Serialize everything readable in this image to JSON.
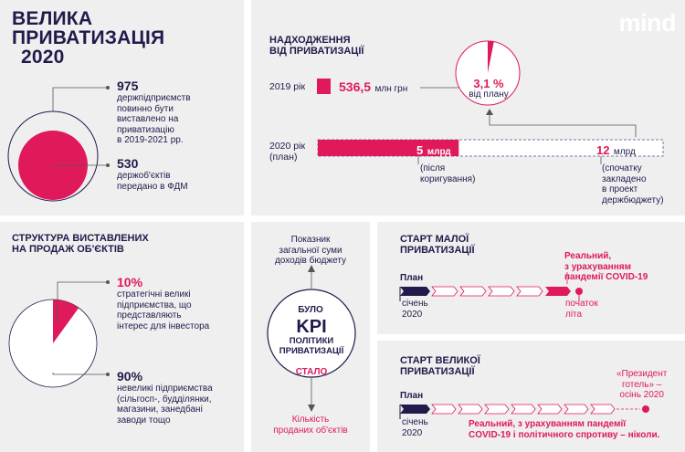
{
  "logo": "mind",
  "colors": {
    "accent": "#e0195a",
    "navy": "#221a4b",
    "panel": "#efefef",
    "dark": "#2e2e3a"
  },
  "title": {
    "line1": "ВЕЛИКА",
    "line2": "ПРИВАТИЗАЦІЯ",
    "line3": "2020"
  },
  "enterprises": {
    "total_value": "975",
    "total_text": [
      "держпідприємств",
      "повинно бути",
      "виставлено на",
      "приватизацію",
      "в 2019-2021 рр."
    ],
    "transferred_value": "530",
    "transferred_text": [
      "держоб'єктів",
      "передано в ФДМ"
    ]
  },
  "revenue": {
    "title_line1": "НАДХОДЖЕННЯ",
    "title_line2": "ВІД ПРИВАТИЗАЦІЇ",
    "y2019_label": "2019 рік",
    "y2019_value": "536,5",
    "y2019_unit": "млн грн",
    "pie_percent_value": 3.1,
    "pie_percent": "3,1 %",
    "pie_caption": "від плану",
    "y2020_label_line1": "2020 рік",
    "y2020_label_line2": "(план)",
    "adjusted_value": "5",
    "adjusted_unit": "млрд",
    "adjusted_note": [
      "(після",
      "коригування)"
    ],
    "original_value": "12",
    "original_unit": "млрд",
    "original_note": [
      "(спочатку",
      "закладено",
      "в проект",
      "держбюджету)"
    ]
  },
  "structure": {
    "title_line1": "СТРУКТУРА ВИСТАВЛЕНИХ",
    "title_line2": "НА ПРОДАЖ ОБ'ЄКТІВ",
    "pie_share": 10,
    "strategic_value": "10%",
    "strategic_text": [
      "стратегічні великі",
      "підприємства, що",
      "представляють",
      "інтерес для інвестора"
    ],
    "small_value": "90%",
    "small_text": [
      "невеликі підприємства",
      "(сільгосп-, будділянки,",
      "магазини, занедбані",
      "заводи тощо"
    ]
  },
  "kpi": {
    "top_text": [
      "Показник",
      "загальної суми",
      "доходів бюджету"
    ],
    "was": "БУЛО",
    "kpi": "KPI",
    "sub1": "ПОЛІТИКИ",
    "sub2": "ПРИВАТИЗАЦІЇ",
    "now": "СТАЛО",
    "bottom_text": [
      "Кількість",
      "проданих об'єктів"
    ]
  },
  "small_privatization": {
    "title_line1": "СТАРТ МАЛОЇ",
    "title_line2": "ПРИВАТИЗАЦІЇ",
    "plan_label": "План",
    "real_label": [
      "Реальний,",
      "з урахуванням",
      "пандемії COVID-19"
    ],
    "start_date": [
      "січень",
      "2020"
    ],
    "end_date": [
      "початок",
      "літа"
    ]
  },
  "large_privatization": {
    "title_line1": "СТАРТ ВЕЛИКОЇ",
    "title_line2": "ПРИВАТИЗАЦІЇ",
    "plan_label": "План",
    "end_note": [
      "«Президент",
      "готель» –",
      "осінь 2020"
    ],
    "real_label": [
      "Реальний, з урахуванням пандемії",
      "COVID-19 і політичного спротиву – ніколи."
    ],
    "start_date": [
      "січень",
      "2020"
    ]
  }
}
